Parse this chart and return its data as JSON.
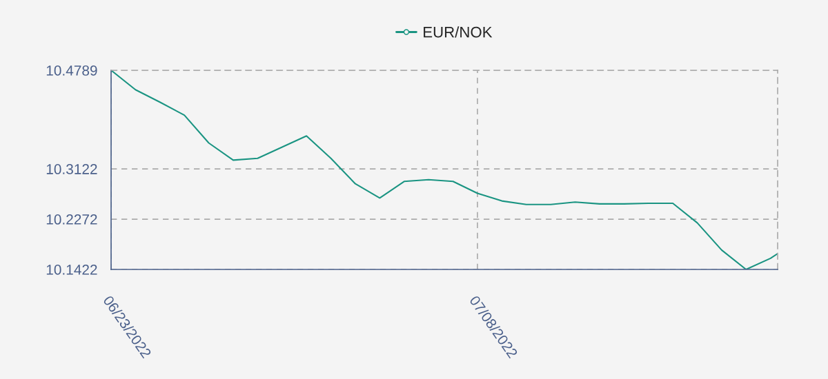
{
  "chart_data": {
    "type": "line",
    "x": [
      "2022-06-23",
      "2022-06-24",
      "2022-06-25",
      "2022-06-26",
      "2022-06-27",
      "2022-06-28",
      "2022-06-29",
      "2022-06-30",
      "2022-07-01",
      "2022-07-02",
      "2022-07-03",
      "2022-07-04",
      "2022-07-05",
      "2022-07-06",
      "2022-07-07",
      "2022-07-08",
      "2022-07-09",
      "2022-07-10",
      "2022-07-11",
      "2022-07-12",
      "2022-07-13",
      "2022-07-14",
      "2022-07-15",
      "2022-07-16",
      "2022-07-17",
      "2022-07-18",
      "2022-07-19",
      "2022-07-20",
      "2022-07-20T07:00"
    ],
    "series": [
      {
        "name": "EUR/NOK",
        "color": "#1a9482",
        "values": [
          10.4789,
          10.446,
          10.425,
          10.403,
          10.356,
          10.327,
          10.33,
          10.349,
          10.368,
          10.33,
          10.287,
          10.263,
          10.291,
          10.294,
          10.291,
          10.271,
          10.258,
          10.252,
          10.252,
          10.256,
          10.253,
          10.253,
          10.254,
          10.254,
          10.221,
          10.175,
          10.1422,
          10.161,
          10.169
        ]
      }
    ],
    "xlim": [
      "2022-06-23",
      "2022-07-20T07:00"
    ],
    "xticks": [
      {
        "value": "2022-06-23",
        "label": "06/23/2022"
      },
      {
        "value": "2022-07-08",
        "label": "07/08/2022"
      }
    ],
    "ylim": [
      10.1422,
      10.4789
    ],
    "yticks": [
      10.1422,
      10.2272,
      10.3122,
      10.4789
    ],
    "grid": true,
    "legend": "top",
    "line_style": "solid"
  }
}
